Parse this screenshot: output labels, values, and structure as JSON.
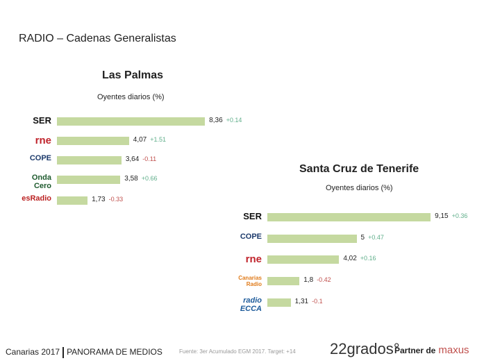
{
  "page_title": "RADIO – Cadenas Generalistas",
  "chart_data": [
    {
      "type": "bar",
      "orientation": "horizontal",
      "title": "Las Palmas",
      "subtitle": "Oyentes diarios (%)",
      "categories": [
        "SER",
        "rne",
        "COPE",
        "Onda Cero",
        "esRadio"
      ],
      "values": [
        8.36,
        4.07,
        3.64,
        3.58,
        1.73
      ],
      "value_labels": [
        "8,36",
        "4,07",
        "3,64",
        "3,58",
        "1,73"
      ],
      "changes": [
        "+0.14",
        "+1.51",
        "-0.11",
        "+0.66",
        "-0.33"
      ]
    },
    {
      "type": "bar",
      "orientation": "horizontal",
      "title": "Santa Cruz de Tenerife",
      "subtitle": "Oyentes diarios (%)",
      "categories": [
        "SER",
        "COPE",
        "rne",
        "Canarias Radio",
        "radio ECCA"
      ],
      "values": [
        9.15,
        5,
        4.02,
        1.8,
        1.31
      ],
      "value_labels": [
        "9,15",
        "5",
        "4,02",
        "1,8",
        "1,31"
      ],
      "changes": [
        "+0.36",
        "+0.47",
        "+0.16",
        "-0.42",
        "-0.1"
      ]
    }
  ],
  "colors": {
    "bar": "#c5d9a0",
    "positive": "#5fae8a",
    "negative": "#c0504d"
  },
  "footer": {
    "left_a": "Canarias 2017",
    "left_b": "PANORAMA DE MEDIOS",
    "source": "Fuente: 3er Acumulado EGM 2017. Target: +14",
    "brand": "22grados°",
    "partner": "Partner de",
    "partner_brand": "maxus"
  }
}
